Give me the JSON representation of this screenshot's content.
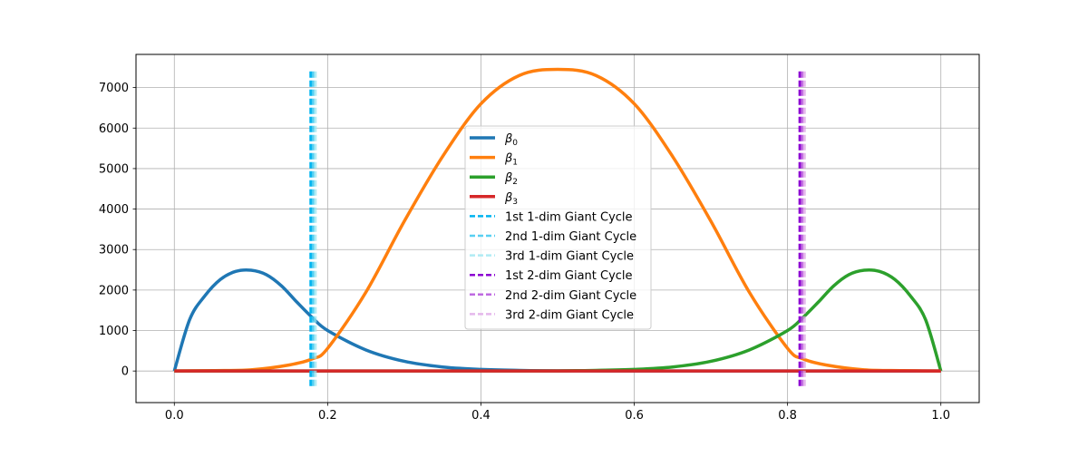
{
  "chart_data": {
    "type": "line",
    "title": "",
    "xlabel": "",
    "ylabel": "",
    "xlim": [
      -0.05,
      1.05
    ],
    "ylim": [
      -780,
      7820
    ],
    "x_ticks": [
      0.0,
      0.2,
      0.4,
      0.6,
      0.8,
      1.0
    ],
    "x_tick_labels": [
      "0.0",
      "0.2",
      "0.4",
      "0.6",
      "0.8",
      "1.0"
    ],
    "y_ticks": [
      0,
      1000,
      2000,
      3000,
      4000,
      5000,
      6000,
      7000
    ],
    "y_tick_labels": [
      "0",
      "1000",
      "2000",
      "3000",
      "4000",
      "5000",
      "6000",
      "7000"
    ],
    "grid": true,
    "legend_position": "center",
    "series": [
      {
        "name": "β0",
        "label_base": "β",
        "label_sub": "0",
        "color": "#1f77b4",
        "style": "solid",
        "x": [
          0.0,
          0.02,
          0.04,
          0.06,
          0.08,
          0.1,
          0.12,
          0.14,
          0.16,
          0.18,
          0.2,
          0.25,
          0.3,
          0.35,
          0.4,
          0.45,
          0.5,
          0.6,
          0.7,
          0.8,
          0.9,
          1.0
        ],
        "y": [
          0,
          1270,
          1860,
          2260,
          2460,
          2490,
          2380,
          2100,
          1700,
          1320,
          1000,
          520,
          240,
          100,
          40,
          15,
          5,
          0,
          0,
          0,
          0,
          0
        ]
      },
      {
        "name": "β1",
        "label_base": "β",
        "label_sub": "1",
        "color": "#ff7f0e",
        "style": "solid",
        "x": [
          0.0,
          0.05,
          0.1,
          0.15,
          0.18,
          0.2,
          0.25,
          0.3,
          0.35,
          0.4,
          0.45,
          0.5,
          0.55,
          0.6,
          0.65,
          0.7,
          0.75,
          0.8,
          0.82,
          0.85,
          0.9,
          0.95,
          1.0
        ],
        "y": [
          0,
          10,
          30,
          150,
          300,
          560,
          1950,
          3700,
          5300,
          6600,
          7300,
          7450,
          7300,
          6600,
          5300,
          3700,
          1950,
          560,
          300,
          150,
          30,
          10,
          0
        ]
      },
      {
        "name": "β2",
        "label_base": "β",
        "label_sub": "2",
        "color": "#2ca02c",
        "style": "solid",
        "x": [
          0.0,
          0.1,
          0.2,
          0.3,
          0.4,
          0.5,
          0.55,
          0.6,
          0.65,
          0.7,
          0.75,
          0.8,
          0.82,
          0.84,
          0.86,
          0.88,
          0.9,
          0.92,
          0.94,
          0.96,
          0.98,
          1.0
        ],
        "y": [
          0,
          0,
          0,
          0,
          0,
          5,
          15,
          40,
          100,
          240,
          520,
          1000,
          1320,
          1700,
          2100,
          2380,
          2490,
          2460,
          2260,
          1860,
          1270,
          0
        ]
      },
      {
        "name": "β3",
        "label_base": "β",
        "label_sub": "3",
        "color": "#d62728",
        "style": "solid",
        "x": [
          0.0,
          1.0
        ],
        "y": [
          0,
          0
        ]
      }
    ],
    "vlines": [
      {
        "name": "1st 1-dim Giant Cycle",
        "x": 0.178,
        "ymin": -400,
        "ymax": 7400,
        "color": "#00b4f0",
        "opacity": 1.0
      },
      {
        "name": "2nd 1-dim Giant Cycle",
        "x": 0.181,
        "ymin": -400,
        "ymax": 7400,
        "color": "#3cc8f0",
        "opacity": 0.85
      },
      {
        "name": "3rd 1-dim Giant Cycle",
        "x": 0.184,
        "ymin": -400,
        "ymax": 7400,
        "color": "#96e6f0",
        "opacity": 0.75
      },
      {
        "name": "1st 2-dim Giant Cycle",
        "x": 0.816,
        "ymin": -400,
        "ymax": 7400,
        "color": "#8c00d2",
        "opacity": 1.0
      },
      {
        "name": "2nd 2-dim Giant Cycle",
        "x": 0.819,
        "ymin": -400,
        "ymax": 7400,
        "color": "#b450dc",
        "opacity": 0.85
      },
      {
        "name": "3rd 2-dim Giant Cycle",
        "x": 0.822,
        "ymin": -400,
        "ymax": 7400,
        "color": "#dca0e6",
        "opacity": 0.75
      }
    ]
  }
}
